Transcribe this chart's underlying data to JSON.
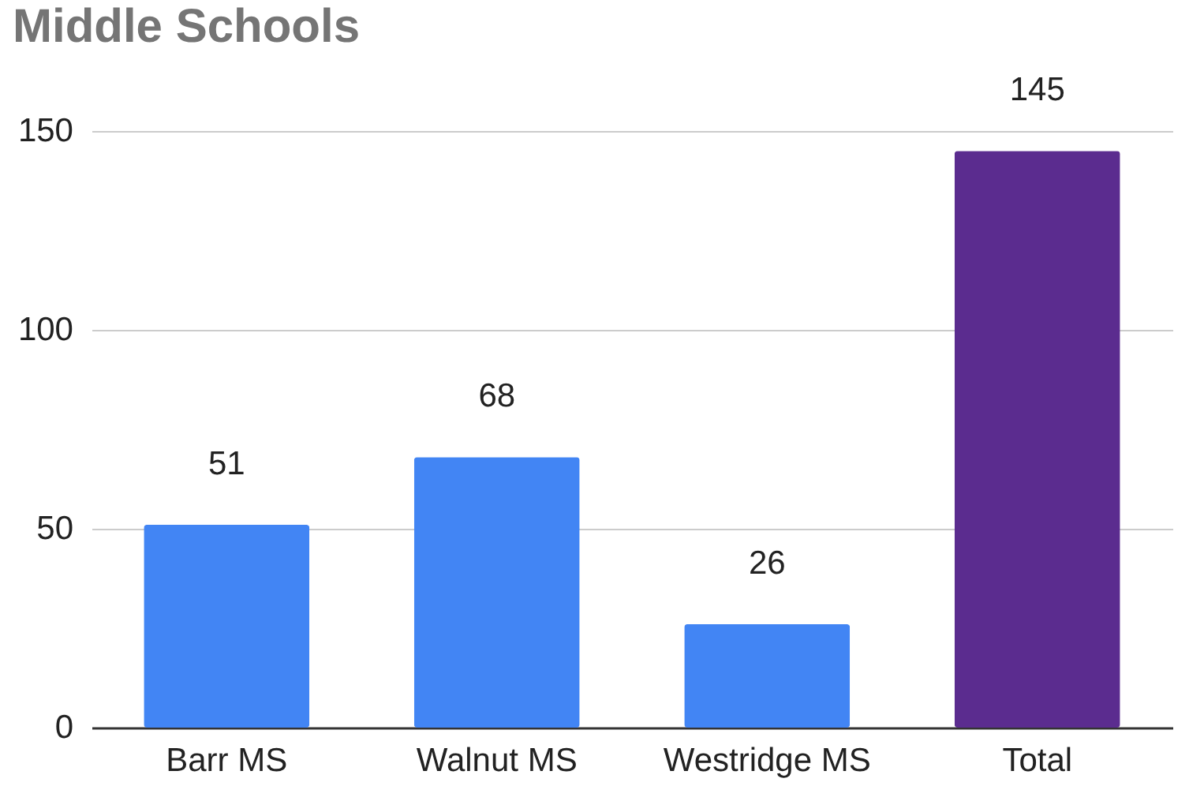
{
  "chart_data": {
    "type": "bar",
    "title": "Middle Schools",
    "categories": [
      "Barr MS",
      "Walnut MS",
      "Westridge MS",
      "Total"
    ],
    "values": [
      51,
      68,
      26,
      145
    ],
    "colors": [
      "#4285f4",
      "#4285f4",
      "#4285f4",
      "#5b2c8f"
    ],
    "ylim": [
      0,
      150
    ],
    "yticks": [
      0,
      50,
      100,
      150
    ],
    "grid": "y",
    "data_labels": true
  }
}
